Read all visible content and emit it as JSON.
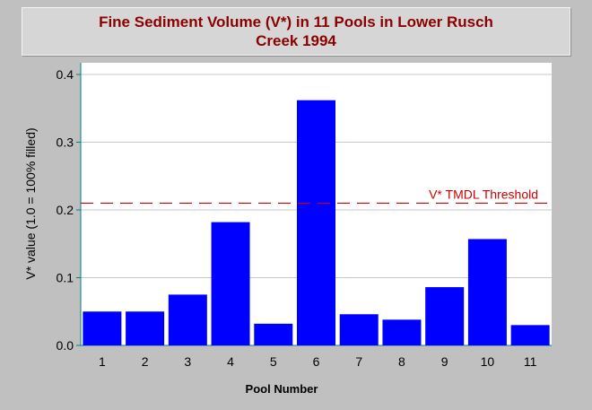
{
  "chart_data": {
    "type": "bar",
    "title": [
      "Fine Sediment Volume (V*) in 11 Pools in Lower Rusch",
      "Creek 1994"
    ],
    "xlabel": "Pool Number",
    "ylabel": "V* value (1.0 = 100% filled)",
    "categories": [
      "1",
      "2",
      "3",
      "4",
      "5",
      "6",
      "7",
      "8",
      "9",
      "10",
      "11"
    ],
    "values": [
      0.05,
      0.05,
      0.075,
      0.182,
      0.032,
      0.362,
      0.046,
      0.038,
      0.086,
      0.157,
      0.03
    ],
    "ylim": [
      0,
      0.4
    ],
    "yticks": [
      0.0,
      0.1,
      0.2,
      0.3,
      0.4
    ],
    "ytick_labels": [
      "0.0",
      "0.1",
      "0.2",
      "0.3",
      "0.4"
    ],
    "threshold": {
      "value": 0.21,
      "label": "V* TMDL Threshold",
      "color": "#cc0000"
    },
    "bar_color": "#0000ff",
    "plot_background": "#ffffff",
    "axis_color": "#008080",
    "grid": true
  }
}
